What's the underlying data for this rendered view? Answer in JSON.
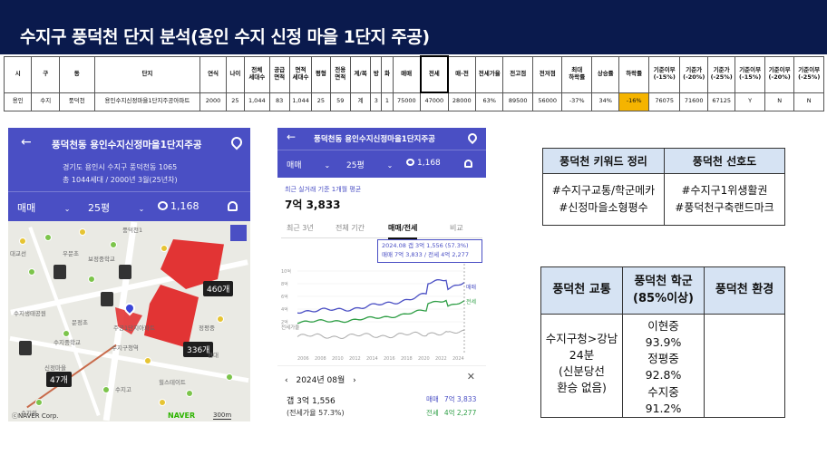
{
  "title": "수지구 풍덕천 단지 분석(용인 수지 신정 마을 1단지 주공)",
  "table": {
    "headers": [
      "시",
      "구",
      "동",
      "단지",
      "연식",
      "나이",
      "전체\n세대수",
      "공급\n면적",
      "면적\n세대수",
      "평형",
      "전용\n면적",
      "계/복",
      "방",
      "화",
      "매매",
      "전세",
      "매-전",
      "전세가율",
      "전고점",
      "전저점",
      "최대\n하락률",
      "상승률",
      "하락률",
      "기준이부\n(-15%)",
      "기준가\n(-20%)",
      "기준가\n(-25%)",
      "기준이부\n(-15%)",
      "기준이부\n(-20%)",
      "기준이부\n(-25%)"
    ],
    "row": [
      "용인",
      "수지",
      "풍덕천",
      "용인수지신정마을1단지주공아파트",
      "2000",
      "25",
      "1,044",
      "83",
      "1,044",
      "25",
      "59",
      "계",
      "3",
      "1",
      "75000",
      "47000",
      "28000",
      "63%",
      "89500",
      "56000",
      "-37%",
      "34%",
      "-16%",
      "76075",
      "71600",
      "67125",
      "Y",
      "N",
      "N"
    ]
  },
  "phone1": {
    "header_title": "풍덕천동 용인수지신정마을1단지주공",
    "address": "경기도 용인시 수지구 풍덕천동 1065",
    "summary": "총 1044세대 / 2000년 3월(25년차)",
    "trade_type": "매매",
    "size": "25평",
    "comments": "1,168",
    "map_tags": [
      "460개",
      "336개",
      "47개"
    ],
    "map_labels": [
      "풍덕천1",
      "대교선",
      "우문초",
      "보정중학교",
      "수지생태공원",
      "주공1단지아파트",
      "문정초",
      "수지중학교",
      "신정마을",
      "힐스테이트",
      "수지구청역",
      "수지고",
      "수지외",
      "현대",
      "정평중"
    ],
    "map_footer_left": "ⓒNAVER Corp.",
    "map_footer_brand": "NAVER",
    "map_scale": "300m"
  },
  "phone2": {
    "header_title": "풍덕천동 용인수지신정마을1단지주공",
    "trade_type": "매매",
    "size": "25평",
    "comments": "1,168",
    "avg_label": "최근 실거래 기준 1개월 평균",
    "avg_value": "7억 3,833",
    "tabs": [
      "최근 3년",
      "전체 기간",
      "매매/전세",
      "비교"
    ],
    "tooltip_line1": "2024.08  갭 3억 1,556 (57.3%)",
    "tooltip_line2": "매매 7억 3,833 / 전세 4억 2,277",
    "legend": [
      "매매",
      "전세"
    ],
    "volume_label": "전세가율",
    "x_ticks": [
      "2006",
      "2008",
      "2010",
      "2012",
      "2014",
      "2016",
      "2018",
      "2020",
      "2022",
      "2024"
    ],
    "y_ticks": [
      "10억",
      "8억",
      "6억",
      "4억",
      "2억"
    ],
    "bottom_month": "2024년 08월",
    "gap_label": "갭 3억 1,556",
    "ratio_label": "(전세가율 57.3%)",
    "sale_label": "매매",
    "sale_value": "7억 3,833",
    "rent_label": "전세",
    "rent_value": "4억 2,277"
  },
  "keywords": {
    "col1_header": "풍덕천 키워드 정리",
    "col2_header": "풍덕천 선호도",
    "col1_line1": "#수지구교통/학군메카",
    "col1_line2": "#신정마을소형평수",
    "col2_line1": "#수지구1위생활권",
    "col2_line2": "#풍덕천구축랜드마크"
  },
  "school": {
    "h1": "풍덕천 교통",
    "h2_line1": "풍덕천 학군",
    "h2_line2": "(85%이상)",
    "h3": "풍덕천 환경",
    "traffic": [
      "수지구청>강남",
      "24분",
      "(신분당선",
      "환승 없음)"
    ],
    "schools": [
      "이현중",
      "93.9%",
      "정평중",
      "92.8%",
      "수지중",
      "91.2%"
    ]
  },
  "colors": {
    "title_bg": "#0a1a4d",
    "app_purple": "#4a4fc4",
    "highlight": "#f5b400",
    "table_header_blue": "#d6e3f3"
  }
}
